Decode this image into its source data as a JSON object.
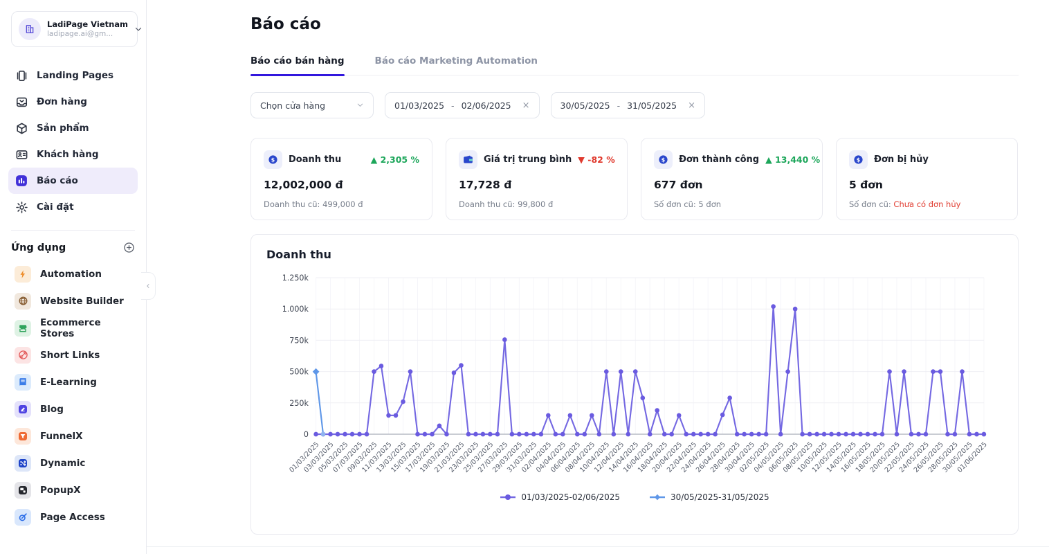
{
  "sidebar": {
    "account": {
      "name": "LadiPage Vietnam",
      "email": "ladipage.ai@gm..."
    },
    "menu": [
      {
        "label": "Landing Pages",
        "icon": "landing-pages-icon",
        "active": false
      },
      {
        "label": "Đơn hàng",
        "icon": "orders-icon",
        "active": false
      },
      {
        "label": "Sản phẩm",
        "icon": "products-icon",
        "active": false
      },
      {
        "label": "Khách hàng",
        "icon": "customers-icon",
        "active": false
      },
      {
        "label": "Báo cáo",
        "icon": "reports-icon",
        "active": true
      },
      {
        "label": "Cài đặt",
        "icon": "settings-icon",
        "active": false
      }
    ],
    "apps_section": {
      "title": "Ứng dụng"
    },
    "apps": [
      {
        "label": "Automation",
        "icon": "lightning-icon",
        "tile_bg": "#fcecd8",
        "brand": "#ee8f2e"
      },
      {
        "label": "Website Builder",
        "icon": "globe-icon",
        "tile_bg": "#f1e8de",
        "brand": "#8a6137"
      },
      {
        "label": "Ecommerce Stores",
        "icon": "storefront-icon",
        "tile_bg": "#def2e4",
        "brand": "#2ea35b"
      },
      {
        "label": "Short Links",
        "icon": "link-icon",
        "tile_bg": "#fce4e4",
        "brand": "#e25555"
      },
      {
        "label": "E-Learning",
        "icon": "book-icon",
        "tile_bg": "#dcebfc",
        "brand": "#3b7de8"
      },
      {
        "label": "Blog",
        "icon": "pen-square-icon",
        "tile_bg": "#e4e1fb",
        "brand": "#4f43e2"
      },
      {
        "label": "FunnelX",
        "icon": "funnel-square-icon",
        "tile_bg": "#fde7da",
        "brand": "#ef6a33"
      },
      {
        "label": "Dynamic",
        "icon": "shuffle-square-icon",
        "tile_bg": "#dde6f8",
        "brand": "#1e44c8"
      },
      {
        "label": "PopupX",
        "icon": "layout-square-icon",
        "tile_bg": "#e4e4e8",
        "brand": "#26282e"
      },
      {
        "label": "Page Access",
        "icon": "swirl-icon",
        "tile_bg": "#d9e7fc",
        "brand": "#2e6fe8"
      }
    ]
  },
  "header": {
    "title": "Báo cáo"
  },
  "tabs": [
    {
      "label": "Báo cáo bán hàng",
      "active": true
    },
    {
      "label": "Báo cáo Marketing Automation",
      "active": false
    }
  ],
  "filters": {
    "store_select": {
      "value": "Chọn cửa hàng"
    },
    "date_ranges": [
      {
        "from": "01/03/2025",
        "sep": "-",
        "to": "02/06/2025",
        "clear": "×"
      },
      {
        "from": "30/05/2025",
        "sep": "-",
        "to": "31/05/2025",
        "clear": "×"
      }
    ]
  },
  "stats": [
    {
      "icon": "dollar-coin-icon",
      "label": "Doanh thu",
      "delta_arrow": "▲",
      "delta": "2,305 %",
      "delta_dir": "up",
      "value": "12,002,000 đ",
      "sub_label": "Doanh thu cũ: ",
      "sub_value": "499,000 đ",
      "sub_red": false
    },
    {
      "icon": "wallet-icon",
      "label": "Giá trị trung bình",
      "delta_arrow": "▼",
      "delta": "-82 %",
      "delta_dir": "down",
      "value": "17,728 đ",
      "sub_label": "Doanh thu cũ: ",
      "sub_value": "99,800 đ",
      "sub_red": false
    },
    {
      "icon": "dollar-coin-icon",
      "label": "Đơn thành công",
      "delta_arrow": "▲",
      "delta": "13,440 %",
      "delta_dir": "up",
      "value": "677 đơn",
      "sub_label": "Số đơn cũ: ",
      "sub_value": "5 đơn",
      "sub_red": false
    },
    {
      "icon": "dollar-coin-icon",
      "label": "Đơn bị hủy",
      "delta_arrow": "",
      "delta": "",
      "delta_dir": "none",
      "value": "5 đơn",
      "sub_label": "Số đơn cũ: ",
      "sub_value": "Chưa có đơn hủy",
      "sub_red": true
    }
  ],
  "chart_data": {
    "type": "line",
    "title": "Doanh thu",
    "ylabel": "",
    "xlabel": "",
    "ylim": [
      0,
      1250
    ],
    "unit": "k (thousand đ)",
    "grid": true,
    "legend_position": "bottom",
    "y_ticks": [
      "1.250k",
      "1.000k",
      "750k",
      "500k",
      "250k",
      "0"
    ],
    "x_tick_every": 2,
    "x_tick_labels": [
      "01/03/2025",
      "03/03/2025",
      "05/03/2025",
      "07/03/2025",
      "09/03/2025",
      "11/03/2025",
      "13/03/2025",
      "15/03/2025",
      "17/03/2025",
      "19/03/2025",
      "21/03/2025",
      "23/03/2025",
      "25/03/2025",
      "27/03/2025",
      "29/03/2025",
      "31/03/2025",
      "02/04/2025",
      "04/04/2025",
      "06/04/2025",
      "08/04/2025",
      "10/04/2025",
      "12/04/2025",
      "14/04/2025",
      "16/04/2025",
      "18/04/2025",
      "20/04/2025",
      "22/04/2025",
      "24/04/2025",
      "26/04/2025",
      "28/04/2025",
      "30/04/2025",
      "02/05/2025",
      "04/05/2025",
      "06/05/2025",
      "08/05/2025",
      "10/05/2025",
      "12/05/2025",
      "14/05/2025",
      "16/05/2025",
      "18/05/2025",
      "20/05/2025",
      "22/05/2025",
      "24/05/2025",
      "26/05/2025",
      "28/05/2025",
      "30/05/2025",
      "01/06/2025"
    ],
    "series": [
      {
        "name": "01/03/2025-02/06/2025",
        "color": "#7468e2",
        "dot_color": "#6a5be0",
        "values": [
          0,
          0,
          0,
          0,
          0,
          0,
          0,
          0,
          500,
          545,
          150,
          150,
          260,
          500,
          0,
          0,
          0,
          67,
          0,
          490,
          550,
          0,
          0,
          0,
          0,
          0,
          755,
          0,
          0,
          0,
          0,
          0,
          150,
          0,
          0,
          150,
          0,
          0,
          150,
          0,
          500,
          0,
          500,
          0,
          500,
          290,
          0,
          190,
          0,
          0,
          150,
          0,
          0,
          0,
          0,
          0,
          155,
          290,
          0,
          0,
          0,
          0,
          0,
          1020,
          0,
          500,
          1000,
          0,
          0,
          0,
          0,
          0,
          0,
          0,
          0,
          0,
          0,
          0,
          0,
          500,
          0,
          500,
          0,
          0,
          0,
          500,
          500,
          0,
          0,
          500,
          0,
          0,
          0
        ]
      },
      {
        "name": "30/05/2025-31/05/2025",
        "color": "#5f97e8",
        "dot_color": "#8fb4ef",
        "x_start_index": 0,
        "values": [
          499,
          0
        ]
      }
    ]
  }
}
